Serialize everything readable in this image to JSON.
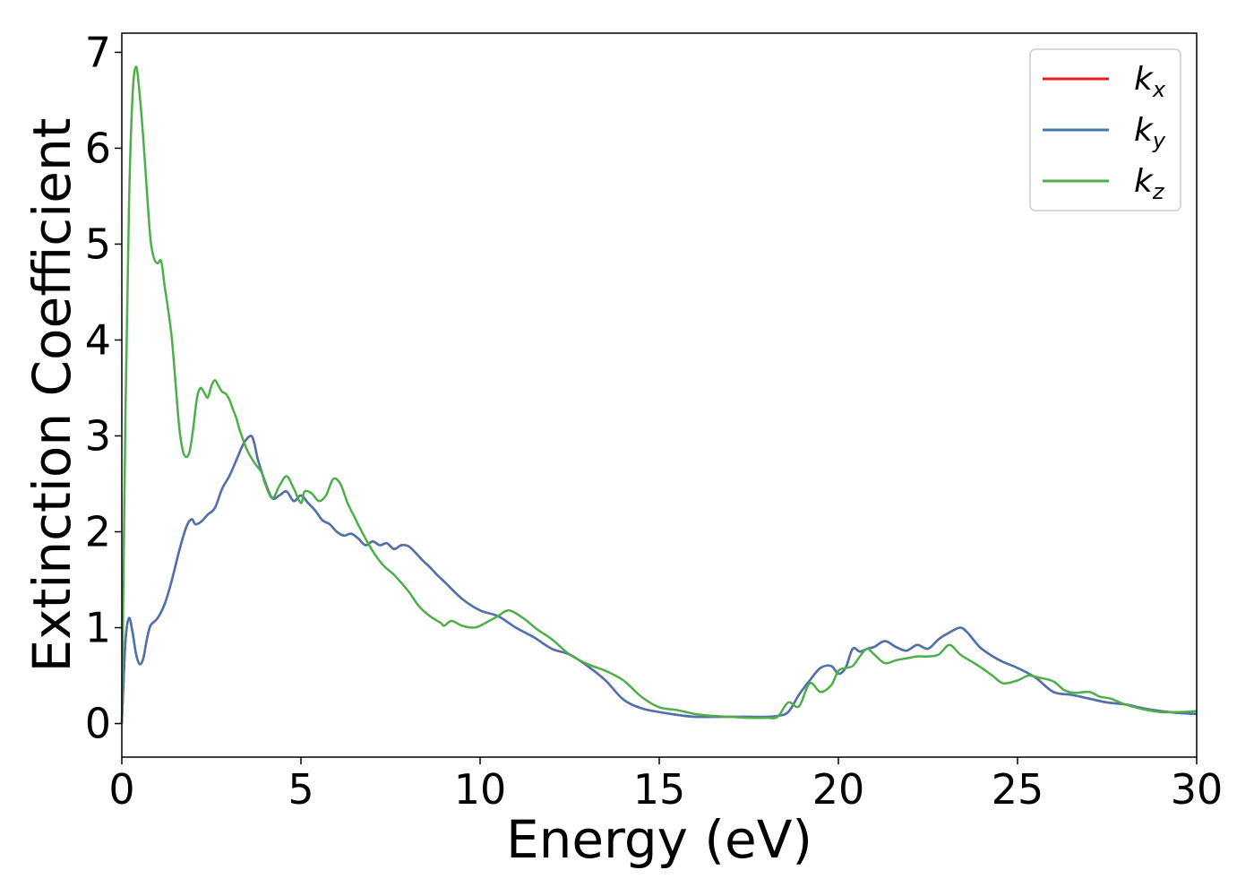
{
  "chart_data": {
    "type": "line",
    "title": "",
    "xlabel": "Energy (eV)",
    "ylabel": "Extinction Coefficient",
    "xlim": [
      0,
      30
    ],
    "ylim": [
      -0.35,
      7.2
    ],
    "xticks": [
      0,
      5,
      10,
      15,
      20,
      25,
      30
    ],
    "yticks": [
      0,
      1,
      2,
      3,
      4,
      5,
      6,
      7
    ],
    "grid": false,
    "legend_position": "top-right",
    "series": [
      {
        "name": "k",
        "subscript": "x",
        "color": "#e41a1c",
        "hidden_under": "k_y",
        "x": [
          0,
          0.1,
          0.2,
          0.3,
          0.4,
          0.5,
          0.6,
          0.7,
          0.8,
          1.0,
          1.2,
          1.4,
          1.6,
          1.8,
          1.95,
          2.05,
          2.2,
          2.4,
          2.6,
          2.8,
          3.0,
          3.2,
          3.4,
          3.6,
          3.7,
          3.8,
          4.0,
          4.2,
          4.4,
          4.6,
          4.8,
          5.0,
          5.2,
          5.4,
          5.6,
          5.8,
          6.0,
          6.2,
          6.4,
          6.6,
          6.8,
          7.0,
          7.2,
          7.4,
          7.6,
          7.8,
          8.0,
          8.2,
          8.4,
          8.6,
          8.8,
          9.0,
          9.5,
          10.0,
          10.5,
          11.0,
          11.5,
          12.0,
          12.5,
          13.0,
          13.5,
          14.0,
          14.5,
          15.0,
          15.5,
          16.0,
          16.5,
          17.0,
          17.5,
          18.0,
          18.3,
          18.6,
          18.9,
          19.2,
          19.5,
          19.8,
          20.0,
          20.2,
          20.4,
          20.6,
          20.8,
          21.0,
          21.3,
          21.6,
          21.9,
          22.2,
          22.5,
          22.8,
          23.1,
          23.4,
          23.6,
          23.8,
          24.0,
          24.5,
          25.0,
          25.5,
          26.0,
          26.5,
          27.0,
          27.5,
          28.0,
          28.5,
          29.0,
          29.5,
          30.0
        ],
        "values": [
          0.0,
          0.85,
          1.1,
          0.95,
          0.72,
          0.62,
          0.68,
          0.88,
          1.02,
          1.1,
          1.25,
          1.5,
          1.8,
          2.05,
          2.13,
          2.08,
          2.1,
          2.18,
          2.25,
          2.45,
          2.58,
          2.75,
          2.92,
          3.0,
          2.92,
          2.75,
          2.52,
          2.35,
          2.38,
          2.42,
          2.32,
          2.38,
          2.3,
          2.22,
          2.12,
          2.08,
          2.0,
          1.96,
          1.98,
          1.93,
          1.86,
          1.9,
          1.86,
          1.88,
          1.82,
          1.86,
          1.85,
          1.78,
          1.7,
          1.63,
          1.55,
          1.48,
          1.3,
          1.18,
          1.12,
          1.0,
          0.9,
          0.78,
          0.72,
          0.6,
          0.45,
          0.25,
          0.16,
          0.12,
          0.09,
          0.07,
          0.07,
          0.07,
          0.07,
          0.07,
          0.08,
          0.12,
          0.3,
          0.45,
          0.58,
          0.6,
          0.52,
          0.58,
          0.78,
          0.75,
          0.78,
          0.8,
          0.86,
          0.8,
          0.76,
          0.82,
          0.78,
          0.88,
          0.95,
          1.0,
          0.95,
          0.86,
          0.78,
          0.66,
          0.58,
          0.48,
          0.33,
          0.3,
          0.26,
          0.22,
          0.2,
          0.16,
          0.13,
          0.11,
          0.1
        ]
      },
      {
        "name": "k",
        "subscript": "y",
        "color": "#4a74b0",
        "x": [
          0,
          0.1,
          0.2,
          0.3,
          0.4,
          0.5,
          0.6,
          0.7,
          0.8,
          1.0,
          1.2,
          1.4,
          1.6,
          1.8,
          1.95,
          2.05,
          2.2,
          2.4,
          2.6,
          2.8,
          3.0,
          3.2,
          3.4,
          3.6,
          3.7,
          3.8,
          4.0,
          4.2,
          4.4,
          4.6,
          4.8,
          5.0,
          5.2,
          5.4,
          5.6,
          5.8,
          6.0,
          6.2,
          6.4,
          6.6,
          6.8,
          7.0,
          7.2,
          7.4,
          7.6,
          7.8,
          8.0,
          8.2,
          8.4,
          8.6,
          8.8,
          9.0,
          9.5,
          10.0,
          10.5,
          11.0,
          11.5,
          12.0,
          12.5,
          13.0,
          13.5,
          14.0,
          14.5,
          15.0,
          15.5,
          16.0,
          16.5,
          17.0,
          17.5,
          18.0,
          18.3,
          18.6,
          18.9,
          19.2,
          19.5,
          19.8,
          20.0,
          20.2,
          20.4,
          20.6,
          20.8,
          21.0,
          21.3,
          21.6,
          21.9,
          22.2,
          22.5,
          22.8,
          23.1,
          23.4,
          23.6,
          23.8,
          24.0,
          24.5,
          25.0,
          25.5,
          26.0,
          26.5,
          27.0,
          27.5,
          28.0,
          28.5,
          29.0,
          29.5,
          30.0
        ],
        "values": [
          0.0,
          0.85,
          1.1,
          0.95,
          0.72,
          0.62,
          0.68,
          0.88,
          1.02,
          1.1,
          1.25,
          1.5,
          1.8,
          2.05,
          2.13,
          2.08,
          2.1,
          2.18,
          2.25,
          2.45,
          2.58,
          2.75,
          2.92,
          3.0,
          2.92,
          2.75,
          2.52,
          2.35,
          2.38,
          2.42,
          2.32,
          2.38,
          2.3,
          2.22,
          2.12,
          2.08,
          2.0,
          1.96,
          1.98,
          1.93,
          1.86,
          1.9,
          1.86,
          1.88,
          1.82,
          1.86,
          1.85,
          1.78,
          1.7,
          1.63,
          1.55,
          1.48,
          1.3,
          1.18,
          1.12,
          1.0,
          0.9,
          0.78,
          0.72,
          0.6,
          0.45,
          0.25,
          0.16,
          0.12,
          0.09,
          0.07,
          0.07,
          0.07,
          0.07,
          0.07,
          0.08,
          0.12,
          0.3,
          0.45,
          0.58,
          0.6,
          0.52,
          0.58,
          0.78,
          0.75,
          0.78,
          0.8,
          0.86,
          0.8,
          0.76,
          0.82,
          0.78,
          0.88,
          0.95,
          1.0,
          0.95,
          0.86,
          0.78,
          0.66,
          0.58,
          0.48,
          0.33,
          0.3,
          0.26,
          0.22,
          0.2,
          0.16,
          0.13,
          0.11,
          0.1
        ]
      },
      {
        "name": "k",
        "subscript": "z",
        "color": "#4daf4a",
        "x": [
          0,
          0.1,
          0.2,
          0.3,
          0.4,
          0.5,
          0.6,
          0.7,
          0.8,
          0.9,
          1.0,
          1.1,
          1.2,
          1.3,
          1.4,
          1.5,
          1.6,
          1.7,
          1.8,
          1.9,
          2.0,
          2.1,
          2.2,
          2.3,
          2.4,
          2.5,
          2.6,
          2.7,
          2.8,
          2.9,
          3.0,
          3.1,
          3.2,
          3.3,
          3.5,
          3.7,
          3.9,
          4.0,
          4.2,
          4.4,
          4.6,
          4.8,
          5.0,
          5.1,
          5.3,
          5.5,
          5.7,
          5.9,
          6.1,
          6.3,
          6.5,
          6.7,
          7.0,
          7.3,
          7.6,
          8.0,
          8.3,
          8.6,
          8.9,
          9.0,
          9.2,
          9.5,
          9.8,
          10.0,
          10.3,
          10.5,
          10.8,
          11.2,
          11.6,
          12.0,
          12.5,
          13.0,
          13.5,
          14.0,
          14.5,
          15.0,
          15.5,
          16.0,
          16.5,
          17.0,
          17.5,
          18.0,
          18.3,
          18.6,
          18.9,
          19.2,
          19.5,
          19.8,
          20.0,
          20.2,
          20.4,
          20.6,
          20.8,
          21.0,
          21.3,
          21.6,
          21.9,
          22.2,
          22.5,
          22.8,
          23.1,
          23.4,
          23.7,
          24.0,
          24.3,
          24.6,
          25.0,
          25.3,
          25.6,
          26.0,
          26.3,
          26.6,
          27.0,
          27.3,
          27.6,
          28.0,
          28.5,
          29.0,
          29.5,
          30.0
        ],
        "values": [
          0.0,
          3.2,
          5.4,
          6.55,
          6.85,
          6.55,
          6.1,
          5.55,
          5.05,
          4.85,
          4.8,
          4.82,
          4.55,
          4.3,
          4.0,
          3.55,
          3.1,
          2.85,
          2.78,
          2.85,
          3.1,
          3.4,
          3.5,
          3.45,
          3.4,
          3.52,
          3.58,
          3.52,
          3.46,
          3.44,
          3.38,
          3.28,
          3.18,
          3.05,
          2.85,
          2.72,
          2.62,
          2.5,
          2.35,
          2.48,
          2.58,
          2.45,
          2.3,
          2.42,
          2.4,
          2.32,
          2.38,
          2.55,
          2.5,
          2.3,
          2.15,
          2.0,
          1.8,
          1.65,
          1.55,
          1.38,
          1.22,
          1.12,
          1.05,
          1.02,
          1.07,
          1.02,
          1.0,
          1.02,
          1.08,
          1.12,
          1.18,
          1.1,
          0.98,
          0.88,
          0.72,
          0.62,
          0.55,
          0.45,
          0.28,
          0.17,
          0.14,
          0.1,
          0.08,
          0.07,
          0.06,
          0.06,
          0.07,
          0.22,
          0.18,
          0.42,
          0.33,
          0.4,
          0.55,
          0.58,
          0.6,
          0.7,
          0.78,
          0.72,
          0.63,
          0.66,
          0.68,
          0.7,
          0.7,
          0.72,
          0.82,
          0.72,
          0.65,
          0.58,
          0.5,
          0.42,
          0.45,
          0.5,
          0.48,
          0.44,
          0.35,
          0.32,
          0.33,
          0.28,
          0.26,
          0.2,
          0.15,
          0.12,
          0.12,
          0.13
        ]
      }
    ]
  }
}
